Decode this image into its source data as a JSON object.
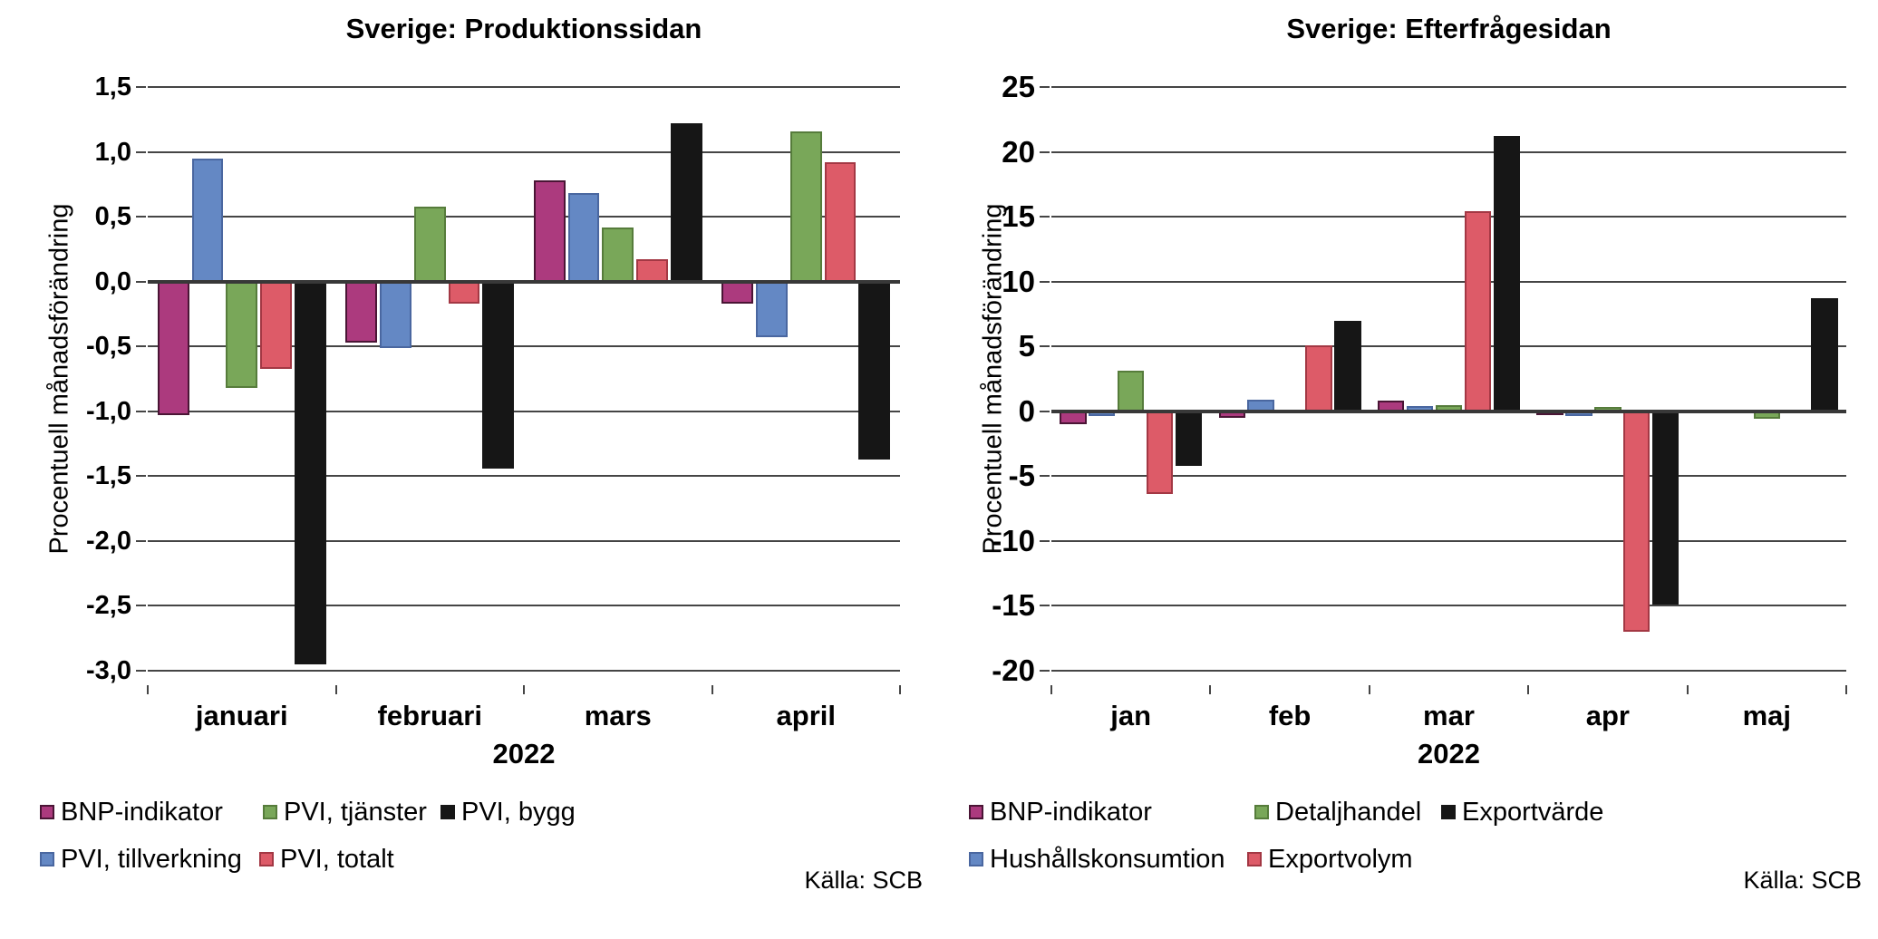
{
  "chart_data": [
    {
      "type": "bar",
      "title": "Sverige: Produktionssidan",
      "ylabel": "Procentuell månadsförändring",
      "xlabel": "2022",
      "source": "Källa: SCB",
      "grid": true,
      "legend_position": "bottom-left",
      "ylim": [
        -3.0,
        1.5
      ],
      "yticks": [
        {
          "v": 1.5,
          "label": "1,5"
        },
        {
          "v": 1.0,
          "label": "1,0"
        },
        {
          "v": 0.5,
          "label": "0,5"
        },
        {
          "v": 0.0,
          "label": "0,0"
        },
        {
          "v": -0.5,
          "label": "-0,5"
        },
        {
          "v": -1.0,
          "label": "-1,0"
        },
        {
          "v": -1.5,
          "label": "-1,5"
        },
        {
          "v": -2.0,
          "label": "-2,0"
        },
        {
          "v": -2.5,
          "label": "-2,5"
        },
        {
          "v": -3.0,
          "label": "-3,0"
        }
      ],
      "categories": [
        "januari",
        "februari",
        "mars",
        "april"
      ],
      "series": [
        {
          "name": "BNP-indikator",
          "color": "#AC3A7E",
          "border": "#4A1535",
          "values": [
            -1.03,
            -0.47,
            0.78,
            -0.17
          ]
        },
        {
          "name": "PVI, tillverkning",
          "color": "#6488C4",
          "border": "#4A67A0",
          "values": [
            0.95,
            -0.51,
            0.68,
            -0.43
          ]
        },
        {
          "name": "PVI, tjänster",
          "color": "#79A759",
          "border": "#567C3B",
          "values": [
            -0.82,
            0.58,
            0.42,
            1.16
          ]
        },
        {
          "name": "PVI, totalt",
          "color": "#DD5B68",
          "border": "#A33844",
          "values": [
            -0.67,
            -0.17,
            0.17,
            0.92
          ]
        },
        {
          "name": "PVI, bygg",
          "color": "#161616",
          "border": "#161616",
          "values": [
            -2.95,
            -1.44,
            1.22,
            -1.37
          ]
        }
      ],
      "legend_rows": [
        [
          "BNP-indikator",
          "PVI, tjänster",
          "PVI, bygg"
        ],
        [
          "PVI, tillverkning",
          "PVI, totalt"
        ]
      ]
    },
    {
      "type": "bar",
      "title": "Sverige: Efterfrågesidan",
      "ylabel": "Procentuell månadsförändring",
      "xlabel": "2022",
      "source": "Källa: SCB",
      "grid": true,
      "legend_position": "bottom-left",
      "ylim": [
        -20,
        25
      ],
      "yticks": [
        {
          "v": 25,
          "label": "25"
        },
        {
          "v": 20,
          "label": "20"
        },
        {
          "v": 15,
          "label": "15"
        },
        {
          "v": 10,
          "label": "10"
        },
        {
          "v": 5,
          "label": "5"
        },
        {
          "v": 0,
          "label": "0"
        },
        {
          "v": -5,
          "label": "-5"
        },
        {
          "v": -10,
          "label": "-10"
        },
        {
          "v": -15,
          "label": "-15"
        },
        {
          "v": -20,
          "label": "-20"
        }
      ],
      "categories": [
        "jan",
        "feb",
        "mar",
        "apr",
        "maj"
      ],
      "series": [
        {
          "name": "BNP-indikator",
          "color": "#AC3A7E",
          "border": "#4A1535",
          "values": [
            -1.0,
            -0.5,
            0.8,
            -0.2,
            0.0
          ]
        },
        {
          "name": "Hushållskonsumtion",
          "color": "#6488C4",
          "border": "#4A67A0",
          "values": [
            -0.4,
            0.9,
            0.4,
            -0.4,
            0.0
          ]
        },
        {
          "name": "Detaljhandel",
          "color": "#79A759",
          "border": "#567C3B",
          "values": [
            3.1,
            0.0,
            0.5,
            0.3,
            -0.6
          ]
        },
        {
          "name": "Exportvolym",
          "color": "#DD5B68",
          "border": "#A33844",
          "values": [
            -6.4,
            5.1,
            15.4,
            -17.0,
            0.0
          ]
        },
        {
          "name": "Exportvärde",
          "color": "#161616",
          "border": "#161616",
          "values": [
            -4.2,
            7.0,
            21.2,
            -14.9,
            8.7
          ]
        }
      ],
      "legend_rows": [
        [
          "BNP-indikator",
          "Detaljhandel",
          "Exportvärde"
        ],
        [
          "Hushållskonsumtion",
          "Exportvolym"
        ]
      ]
    }
  ]
}
